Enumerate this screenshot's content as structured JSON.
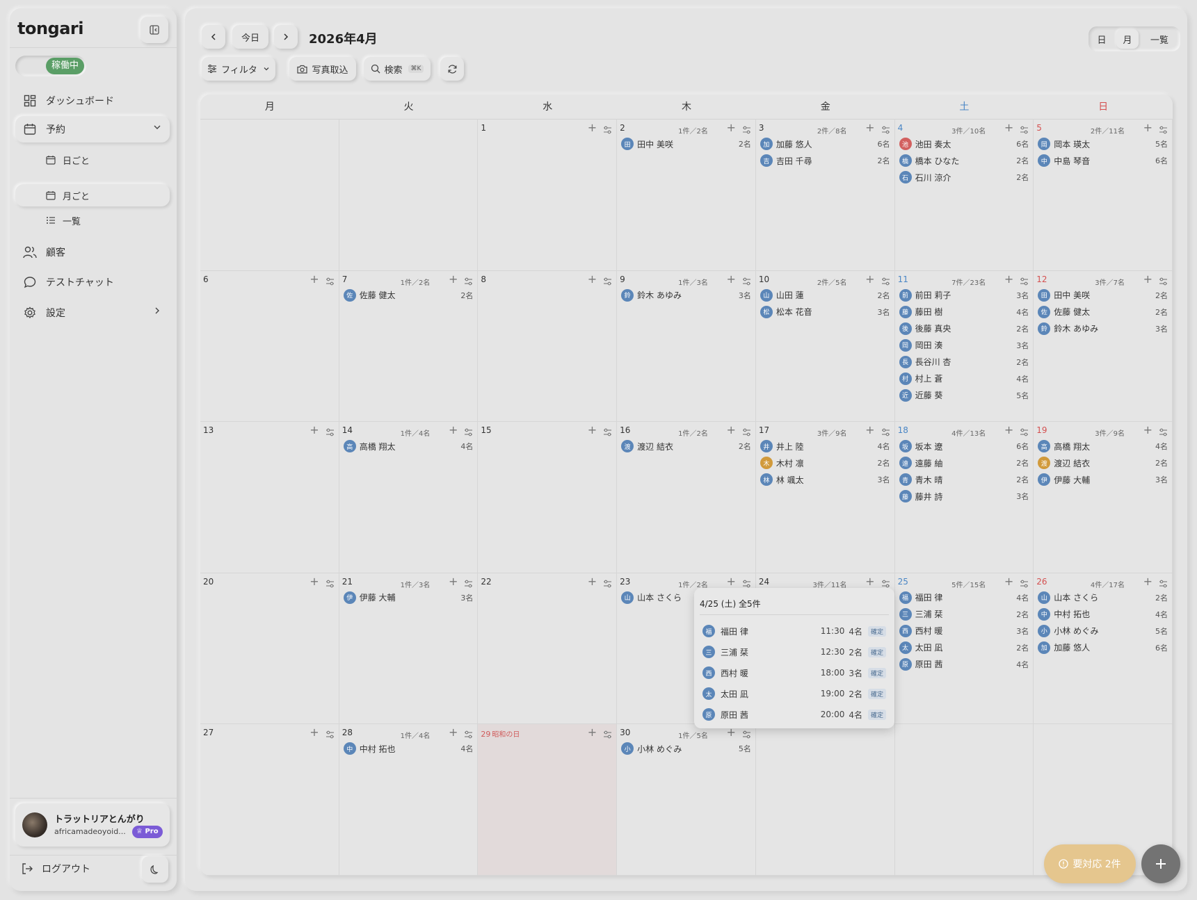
{
  "sidebar": {
    "logo": "tongari",
    "status": "稼働中",
    "nav": {
      "dashboard": "ダッシュボード",
      "reservations": "予約",
      "daily": "日ごと",
      "monthly": "月ごと",
      "list": "一覧",
      "customers": "顧客",
      "test_chat": "テストチャット",
      "settings": "設定"
    },
    "user": {
      "name": "トラットリアとんがり",
      "email": "africamadeoyoid...",
      "badge": "Pro"
    },
    "logout": "ログアウト"
  },
  "header": {
    "today": "今日",
    "title": "2026年4月",
    "views": {
      "day": "日",
      "month": "月",
      "list": "一覧"
    },
    "filter": "フィルタ",
    "photo_import": "写真取込",
    "search": "検索",
    "search_shortcut": "⌘K"
  },
  "colors": {
    "blue": "#5b86b8",
    "red": "#d2605f",
    "orange": "#d19a3b",
    "holiday_bg": "#e2dada",
    "alert": "#e5c68e",
    "status_green": "#5a9e66"
  },
  "calendar": {
    "dow": [
      "月",
      "火",
      "水",
      "木",
      "金",
      "土",
      "日"
    ],
    "weeks": [
      [
        {
          "day": ""
        },
        {
          "day": ""
        },
        {
          "day": "1"
        },
        {
          "day": "2",
          "summary": "1件／2名",
          "res": [
            {
              "i": "田",
              "n": "田中 美咲",
              "c": "2名",
              "col": "blue"
            }
          ]
        },
        {
          "day": "3",
          "summary": "2件／8名",
          "res": [
            {
              "i": "加",
              "n": "加藤 悠人",
              "c": "6名",
              "col": "blue"
            },
            {
              "i": "吉",
              "n": "吉田 千尋",
              "c": "2名",
              "col": "blue"
            }
          ]
        },
        {
          "day": "4",
          "summary": "3件／10名",
          "res": [
            {
              "i": "池",
              "n": "池田 奏太",
              "c": "6名",
              "col": "red"
            },
            {
              "i": "橋",
              "n": "橋本 ひなた",
              "c": "2名",
              "col": "blue"
            },
            {
              "i": "石",
              "n": "石川 涼介",
              "c": "2名",
              "col": "blue"
            }
          ]
        },
        {
          "day": "5",
          "summary": "2件／11名",
          "res": [
            {
              "i": "岡",
              "n": "岡本 瑛太",
              "c": "5名",
              "col": "blue"
            },
            {
              "i": "中",
              "n": "中島 琴音",
              "c": "6名",
              "col": "blue"
            }
          ]
        }
      ],
      [
        {
          "day": "6"
        },
        {
          "day": "7",
          "summary": "1件／2名",
          "res": [
            {
              "i": "佐",
              "n": "佐藤 健太",
              "c": "2名",
              "col": "blue"
            }
          ]
        },
        {
          "day": "8"
        },
        {
          "day": "9",
          "summary": "1件／3名",
          "res": [
            {
              "i": "鈴",
              "n": "鈴木 あゆみ",
              "c": "3名",
              "col": "blue"
            }
          ]
        },
        {
          "day": "10",
          "summary": "2件／5名",
          "res": [
            {
              "i": "山",
              "n": "山田 蓮",
              "c": "2名",
              "col": "blue"
            },
            {
              "i": "松",
              "n": "松本 花音",
              "c": "3名",
              "col": "blue"
            }
          ]
        },
        {
          "day": "11",
          "summary": "7件／23名",
          "res": [
            {
              "i": "前",
              "n": "前田 莉子",
              "c": "3名",
              "col": "blue"
            },
            {
              "i": "藤",
              "n": "藤田 樹",
              "c": "4名",
              "col": "blue"
            },
            {
              "i": "後",
              "n": "後藤 真央",
              "c": "2名",
              "col": "blue"
            },
            {
              "i": "岡",
              "n": "岡田 湊",
              "c": "3名",
              "col": "blue"
            },
            {
              "i": "長",
              "n": "長谷川 杏",
              "c": "2名",
              "col": "blue"
            },
            {
              "i": "村",
              "n": "村上 蒼",
              "c": "4名",
              "col": "blue"
            },
            {
              "i": "近",
              "n": "近藤 葵",
              "c": "5名",
              "col": "blue"
            }
          ]
        },
        {
          "day": "12",
          "summary": "3件／7名",
          "res": [
            {
              "i": "田",
              "n": "田中 美咲",
              "c": "2名",
              "col": "blue"
            },
            {
              "i": "佐",
              "n": "佐藤 健太",
              "c": "2名",
              "col": "blue"
            },
            {
              "i": "鈴",
              "n": "鈴木 あゆみ",
              "c": "3名",
              "col": "blue"
            }
          ]
        }
      ],
      [
        {
          "day": "13"
        },
        {
          "day": "14",
          "summary": "1件／4名",
          "res": [
            {
              "i": "高",
              "n": "高橋 翔太",
              "c": "4名",
              "col": "blue"
            }
          ]
        },
        {
          "day": "15"
        },
        {
          "day": "16",
          "summary": "1件／2名",
          "res": [
            {
              "i": "渡",
              "n": "渡辺 結衣",
              "c": "2名",
              "col": "blue"
            }
          ]
        },
        {
          "day": "17",
          "summary": "3件／9名",
          "res": [
            {
              "i": "井",
              "n": "井上 陸",
              "c": "4名",
              "col": "blue"
            },
            {
              "i": "木",
              "n": "木村 凛",
              "c": "2名",
              "col": "orange"
            },
            {
              "i": "林",
              "n": "林 颯太",
              "c": "3名",
              "col": "blue"
            }
          ]
        },
        {
          "day": "18",
          "summary": "4件／13名",
          "res": [
            {
              "i": "坂",
              "n": "坂本 遼",
              "c": "6名",
              "col": "blue"
            },
            {
              "i": "遠",
              "n": "遠藤 紬",
              "c": "2名",
              "col": "blue"
            },
            {
              "i": "青",
              "n": "青木 晴",
              "c": "2名",
              "col": "blue"
            },
            {
              "i": "藤",
              "n": "藤井 詩",
              "c": "3名",
              "col": "blue"
            }
          ]
        },
        {
          "day": "19",
          "summary": "3件／9名",
          "res": [
            {
              "i": "高",
              "n": "高橋 翔太",
              "c": "4名",
              "col": "blue"
            },
            {
              "i": "渡",
              "n": "渡辺 結衣",
              "c": "2名",
              "col": "orange"
            },
            {
              "i": "伊",
              "n": "伊藤 大輔",
              "c": "3名",
              "col": "blue"
            }
          ]
        }
      ],
      [
        {
          "day": "20"
        },
        {
          "day": "21",
          "summary": "1件／3名",
          "res": [
            {
              "i": "伊",
              "n": "伊藤 大輔",
              "c": "3名",
              "col": "blue"
            }
          ]
        },
        {
          "day": "22"
        },
        {
          "day": "23",
          "summary": "1件／2名",
          "res": [
            {
              "i": "山",
              "n": "山本 さくら",
              "c": "2名",
              "col": "blue"
            }
          ]
        },
        {
          "day": "24",
          "summary": "3件／11名",
          "res": []
        },
        {
          "day": "25",
          "summary": "5件／15名",
          "res": [
            {
              "i": "福",
              "n": "福田 律",
              "c": "4名",
              "col": "blue"
            },
            {
              "i": "三",
              "n": "三浦 栞",
              "c": "2名",
              "col": "blue"
            },
            {
              "i": "西",
              "n": "西村 暖",
              "c": "3名",
              "col": "blue"
            },
            {
              "i": "太",
              "n": "太田 凪",
              "c": "2名",
              "col": "blue"
            },
            {
              "i": "原",
              "n": "原田 茜",
              "c": "4名",
              "col": "blue"
            }
          ]
        },
        {
          "day": "26",
          "summary": "4件／17名",
          "res": [
            {
              "i": "山",
              "n": "山本 さくら",
              "c": "2名",
              "col": "blue"
            },
            {
              "i": "中",
              "n": "中村 拓也",
              "c": "4名",
              "col": "blue"
            },
            {
              "i": "小",
              "n": "小林 めぐみ",
              "c": "5名",
              "col": "blue"
            },
            {
              "i": "加",
              "n": "加藤 悠人",
              "c": "6名",
              "col": "blue"
            }
          ]
        }
      ],
      [
        {
          "day": "27"
        },
        {
          "day": "28",
          "summary": "1件／4名",
          "res": [
            {
              "i": "中",
              "n": "中村 拓也",
              "c": "4名",
              "col": "blue"
            }
          ]
        },
        {
          "day": "29",
          "holiday": "昭和の日"
        },
        {
          "day": "30",
          "summary": "1件／5名",
          "res": [
            {
              "i": "小",
              "n": "小林 めぐみ",
              "c": "5名",
              "col": "blue"
            }
          ]
        },
        {
          "day": ""
        },
        {
          "day": ""
        },
        {
          "day": ""
        }
      ]
    ]
  },
  "popup": {
    "title": "4/25 (土) 全5件",
    "rows": [
      {
        "i": "福",
        "n": "福田 律",
        "t": "11:30",
        "g": "4名",
        "s": "確定"
      },
      {
        "i": "三",
        "n": "三浦 栞",
        "t": "12:30",
        "g": "2名",
        "s": "確定"
      },
      {
        "i": "西",
        "n": "西村 暖",
        "t": "18:00",
        "g": "3名",
        "s": "確定"
      },
      {
        "i": "太",
        "n": "太田 凪",
        "t": "19:00",
        "g": "2名",
        "s": "確定"
      },
      {
        "i": "原",
        "n": "原田 茜",
        "t": "20:00",
        "g": "4名",
        "s": "確定"
      }
    ]
  },
  "floating": {
    "alert": "要対応 2件"
  }
}
